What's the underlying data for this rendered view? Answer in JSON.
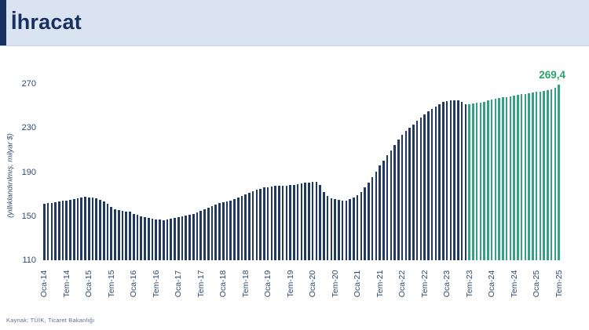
{
  "header": {
    "title": "İhracat"
  },
  "footer": {
    "source": "Kaynak: TÜİK, Ticaret Bakanlığı"
  },
  "chart_data": {
    "type": "bar",
    "title": "İhracat",
    "ylabel": "(yıllıklandırılmış, milyar $)",
    "ylim": [
      110,
      270
    ],
    "yticks": [
      110,
      150,
      190,
      230,
      270
    ],
    "grid": false,
    "legend": false,
    "x_tick_every": 6,
    "x_tick_labels": [
      "Oca-14",
      "Tem-14",
      "Oca-15",
      "Tem-15",
      "Oca-16",
      "Tem-16",
      "Oca-17",
      "Tem-17",
      "Oca-18",
      "Tem-18",
      "Oca-19",
      "Tem-19",
      "Oca-20",
      "Tem-20",
      "Oca-21",
      "Tem-21",
      "Oca-22",
      "Tem-22",
      "Oca-23",
      "Tem-23",
      "Oca-24",
      "Tem-24",
      "Oca-25",
      "Tem-25"
    ],
    "x_range_note": "monthly bars from Oca-14 to Tem-25",
    "values": [
      161.0,
      161.7,
      162.3,
      162.9,
      163.4,
      163.9,
      164.4,
      164.9,
      165.6,
      166.3,
      166.9,
      167.4,
      167.2,
      166.9,
      166.1,
      164.9,
      163.2,
      161.0,
      158.6,
      156.6,
      155.2,
      154.5,
      154.1,
      153.8,
      152.3,
      151.0,
      150.0,
      149.1,
      148.3,
      147.6,
      147.0,
      146.7,
      146.5,
      146.9,
      147.4,
      148.2,
      149.0,
      149.6,
      150.3,
      151.2,
      152.2,
      153.3,
      154.6,
      156.0,
      157.5,
      159.0,
      160.5,
      161.8,
      162.6,
      163.4,
      164.4,
      165.5,
      166.8,
      168.2,
      169.7,
      171.2,
      172.6,
      173.9,
      175.0,
      175.9,
      176.5,
      177.0,
      177.4,
      177.7,
      177.9,
      177.8,
      178.1,
      178.5,
      179.0,
      179.6,
      180.1,
      180.6,
      181.0,
      181.3,
      178.4,
      172.0,
      168.0,
      166.3,
      165.3,
      164.7,
      164.3,
      164.2,
      165.3,
      167.2,
      169.0,
      172.0,
      176.0,
      180.5,
      185.5,
      190.5,
      196.0,
      200.5,
      205.0,
      209.5,
      214.5,
      219.5,
      223.9,
      227.3,
      230.4,
      233.4,
      236.4,
      239.4,
      242.3,
      245.0,
      247.4,
      249.6,
      251.6,
      253.4,
      254.4,
      255.0,
      255.4,
      255.1,
      253.4,
      251.6,
      251.9,
      252.3,
      252.8,
      253.3,
      254.0,
      254.8,
      255.5,
      256.3,
      257.0,
      257.6,
      258.3,
      259.0,
      259.6,
      260.1,
      260.6,
      261.1,
      261.6,
      262.2,
      262.6,
      263.1,
      263.6,
      264.4,
      265.4,
      266.5,
      269.4
    ],
    "recent_start_index": 114,
    "last_value_label": "269,4",
    "colors": {
      "historical": "#203a61",
      "recent": "#35a183",
      "annotation": "#2ba26e",
      "axis_text": "#2f4a6e"
    }
  }
}
